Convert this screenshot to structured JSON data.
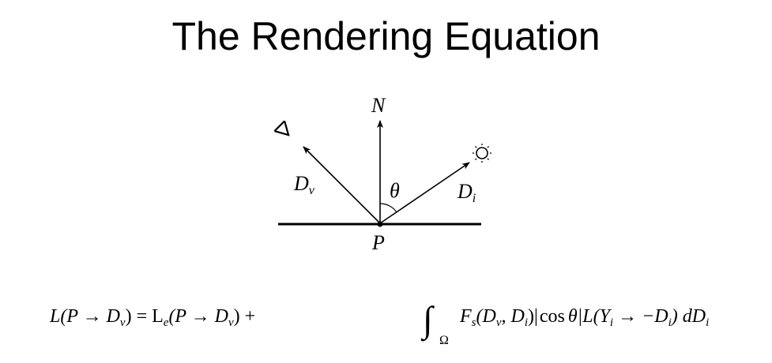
{
  "title": "The Rendering Equation",
  "diagram": {
    "normal_label": "N",
    "view_dir_label": "D",
    "view_dir_sub": "v",
    "light_dir_label": "D",
    "light_dir_sub": "i",
    "angle_label": "θ",
    "point_label": "P",
    "eye_icon": "eye-icon",
    "sun_icon": "sun-icon"
  },
  "equation": {
    "lhs": "L(P → D",
    "lhs_sub": "v",
    "lhs_close": ") = L",
    "le_sub": "e",
    "le_arg": "(P → D",
    "le_arg_sub": "v",
    "le_close": ") +",
    "integral": "∫",
    "domain": "Ω",
    "fs": "F",
    "fs_sub": "s",
    "fs_arg": "(D",
    "fs_arg_sub1": "v",
    "fs_arg_mid": ", D",
    "fs_arg_sub2": "i",
    "fs_close": ")|",
    "cos": "cos",
    "theta": "θ",
    "l_part": "|L(Y",
    "l_sub": "i",
    "l_mid": " → −D",
    "l_sub2": "i",
    "l_close": ") dD",
    "dd_sub": "i"
  },
  "colors": {
    "ink": "#000000",
    "background": "#ffffff"
  }
}
